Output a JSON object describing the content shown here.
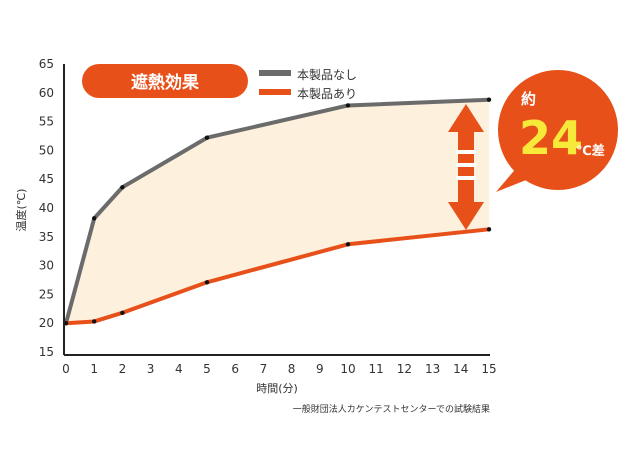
{
  "chart_data": {
    "type": "line",
    "title": "遮熱効果",
    "xlabel": "時間(分)",
    "ylabel": "温度(℃)",
    "xlim": [
      0,
      15
    ],
    "ylim": [
      15,
      65
    ],
    "x_ticks": [
      0,
      1,
      2,
      3,
      4,
      5,
      6,
      7,
      8,
      9,
      10,
      11,
      12,
      13,
      14,
      15
    ],
    "y_ticks": [
      15,
      20,
      25,
      30,
      35,
      40,
      45,
      50,
      55,
      60,
      65
    ],
    "grid": false,
    "legend_position": "top",
    "series": [
      {
        "name": "本製品なし",
        "color": "#6b6b6b",
        "x": [
          0,
          1,
          2,
          5,
          10,
          15
        ],
        "y": [
          20,
          38.2,
          43.6,
          52.2,
          57.8,
          58.8
        ]
      },
      {
        "name": "本製品あり",
        "color": "#e8501a",
        "x": [
          0,
          1,
          2,
          5,
          10,
          15
        ],
        "y": [
          20,
          20.3,
          21.8,
          27.1,
          33.7,
          36.3
        ]
      }
    ],
    "fill_between_color": "#fdf0dd",
    "annotation": {
      "prefix": "約",
      "value": "24",
      "suffix": "℃差",
      "bubble_color": "#e8501a",
      "value_color": "#f7e93a"
    },
    "source_note": "一般財団法人カケンテストセンターでの試験結果"
  }
}
